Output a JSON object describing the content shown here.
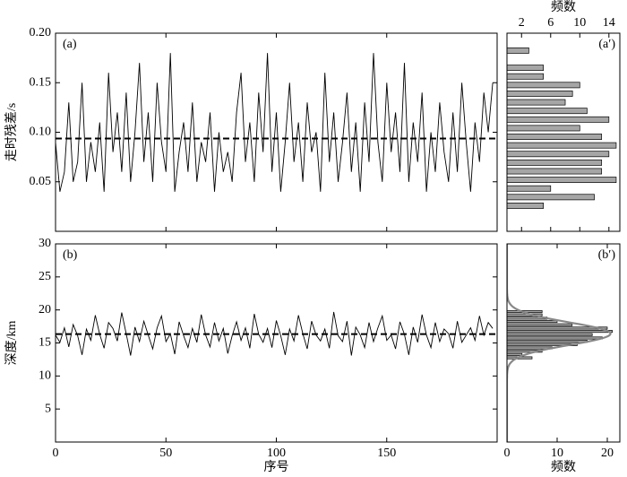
{
  "chart_data": [
    {
      "type": "line",
      "panel_label": "(a)",
      "ylabel": "走时残差/s",
      "color": "#000000",
      "mean_line": "dashed",
      "xlim": [
        0,
        200
      ],
      "xticks": [
        0,
        50,
        100,
        150
      ],
      "ylim": [
        0,
        0.2
      ],
      "yticks": [
        0.05,
        {
          "value": 0.1,
          "label": "0.10"
        },
        0.15,
        {
          "value": 0.2,
          "label": "0.20"
        }
      ],
      "x": [
        0,
        2,
        4,
        6,
        8,
        10,
        12,
        14,
        16,
        18,
        20,
        22,
        24,
        26,
        28,
        30,
        32,
        34,
        36,
        38,
        40,
        42,
        44,
        46,
        48,
        50,
        52,
        54,
        56,
        58,
        60,
        62,
        64,
        66,
        68,
        70,
        72,
        74,
        76,
        78,
        80,
        82,
        84,
        86,
        88,
        90,
        92,
        94,
        96,
        98,
        100,
        102,
        104,
        106,
        108,
        110,
        112,
        114,
        116,
        118,
        120,
        122,
        124,
        126,
        128,
        130,
        132,
        134,
        136,
        138,
        140,
        142,
        144,
        146,
        148,
        150,
        152,
        154,
        156,
        158,
        160,
        162,
        164,
        166,
        168,
        170,
        172,
        174,
        176,
        178,
        180,
        182,
        184,
        186,
        188,
        190,
        192,
        194,
        196,
        198
      ],
      "values": [
        0.09,
        0.04,
        0.06,
        0.13,
        0.05,
        0.07,
        0.15,
        0.05,
        0.09,
        0.06,
        0.11,
        0.04,
        0.16,
        0.08,
        0.12,
        0.06,
        0.14,
        0.05,
        0.1,
        0.17,
        0.07,
        0.12,
        0.05,
        0.15,
        0.09,
        0.06,
        0.18,
        0.04,
        0.08,
        0.11,
        0.06,
        0.13,
        0.05,
        0.09,
        0.07,
        0.12,
        0.04,
        0.1,
        0.06,
        0.08,
        0.05,
        0.12,
        0.16,
        0.07,
        0.11,
        0.05,
        0.14,
        0.08,
        0.18,
        0.06,
        0.12,
        0.04,
        0.09,
        0.15,
        0.07,
        0.11,
        0.05,
        0.13,
        0.08,
        0.1,
        0.04,
        0.16,
        0.07,
        0.12,
        0.05,
        0.09,
        0.14,
        0.06,
        0.11,
        0.04,
        0.13,
        0.07,
        0.18,
        0.09,
        0.05,
        0.15,
        0.08,
        0.12,
        0.06,
        0.17,
        0.05,
        0.11,
        0.07,
        0.14,
        0.04,
        0.1,
        0.06,
        0.13,
        0.08,
        0.05,
        0.12,
        0.06,
        0.15,
        0.09,
        0.04,
        0.11,
        0.07,
        0.14,
        0.1,
        0.15
      ]
    },
    {
      "type": "histogram",
      "panel_label": "(a′)",
      "xlabel": "频数",
      "xaxis_position": "top",
      "color": "#a6a6a6",
      "xlim": [
        0,
        15.5
      ],
      "xticks": [
        2,
        6,
        10,
        14
      ],
      "ylim": [
        0,
        0.2
      ],
      "bins": [
        0.0215,
        0.0302,
        0.0389,
        0.0476,
        0.0563,
        0.065,
        0.0737,
        0.0824,
        0.0911,
        0.0998,
        0.1085,
        0.1172,
        0.1259,
        0.1346,
        0.1433,
        0.152,
        0.1607,
        0.1694,
        0.1781,
        0.1868
      ],
      "counts": [
        5,
        12,
        6,
        15,
        13,
        13,
        14,
        15,
        13,
        10,
        14,
        11,
        8,
        9,
        10,
        5,
        5,
        0,
        3
      ]
    },
    {
      "type": "line",
      "panel_label": "(b)",
      "ylabel": "深度/km",
      "xlabel": "序号",
      "color": "#000000",
      "mean_line": "dashed",
      "xlim": [
        0,
        200
      ],
      "xticks": [
        0,
        50,
        100,
        150
      ],
      "ylim": [
        0,
        30
      ],
      "yticks": [
        5,
        10,
        15,
        20,
        25,
        30
      ],
      "x": [
        0,
        2,
        4,
        6,
        8,
        10,
        12,
        14,
        16,
        18,
        20,
        22,
        24,
        26,
        28,
        30,
        32,
        34,
        36,
        38,
        40,
        42,
        44,
        46,
        48,
        50,
        52,
        54,
        56,
        58,
        60,
        62,
        64,
        66,
        68,
        70,
        72,
        74,
        76,
        78,
        80,
        82,
        84,
        86,
        88,
        90,
        92,
        94,
        96,
        98,
        100,
        102,
        104,
        106,
        108,
        110,
        112,
        114,
        116,
        118,
        120,
        122,
        124,
        126,
        128,
        130,
        132,
        134,
        136,
        138,
        140,
        142,
        144,
        146,
        148,
        150,
        152,
        154,
        156,
        158,
        160,
        162,
        164,
        166,
        168,
        170,
        172,
        174,
        176,
        178,
        180,
        182,
        184,
        186,
        188,
        190,
        192,
        194,
        196,
        198
      ],
      "values": [
        16.2,
        15.1,
        17.3,
        14.4,
        17.8,
        16.1,
        13.2,
        17.1,
        15.4,
        19.2,
        16.3,
        14.2,
        18.1,
        17.2,
        15.3,
        19.6,
        16.4,
        13.1,
        17.4,
        15.2,
        18.3,
        16.2,
        14.1,
        17.3,
        19.1,
        15.2,
        16.4,
        13.3,
        18.2,
        16.1,
        14.3,
        17.2,
        15.1,
        19.3,
        16.2,
        14.4,
        18.1,
        15.3,
        17.2,
        13.4,
        16.1,
        18.2,
        15.4,
        17.3,
        14.2,
        19.4,
        16.3,
        15.1,
        17.2,
        14.3,
        18.4,
        16.1,
        13.2,
        17.1,
        15.3,
        19.2,
        16.4,
        14.1,
        18.3,
        16.2,
        15.3,
        17.1,
        14.2,
        19.7,
        16.1,
        15.2,
        18.3,
        13.1,
        17.4,
        16.2,
        14.3,
        18.1,
        15.2,
        17.3,
        19.1,
        15.4,
        16.2,
        14.1,
        18.2,
        16.3,
        13.2,
        17.4,
        15.1,
        19.3,
        16.2,
        14.3,
        18.1,
        15.2,
        17.1,
        16.4,
        14.2,
        18.3,
        15.1,
        16.2,
        17.3,
        15.4,
        19.1,
        16.2,
        18.1,
        17.2
      ]
    },
    {
      "type": "histogram",
      "panel_label": "(b′)",
      "xlabel": "频数",
      "xaxis_position": "bottom",
      "color": "#a6a6a6",
      "fit": "normal",
      "fit_color": "#888888",
      "xlim": [
        0,
        22.5
      ],
      "xticks": [
        0,
        10,
        20
      ],
      "ylim": [
        0,
        30
      ],
      "bins": [
        12.5,
        13,
        13.5,
        14,
        14.5,
        15,
        15.5,
        16,
        16.5,
        17,
        17.5,
        18,
        18.5,
        19,
        19.5,
        20
      ],
      "counts": [
        5,
        3,
        7,
        9,
        14,
        16,
        19,
        17,
        21,
        20,
        13,
        10,
        8,
        7,
        7
      ]
    }
  ]
}
